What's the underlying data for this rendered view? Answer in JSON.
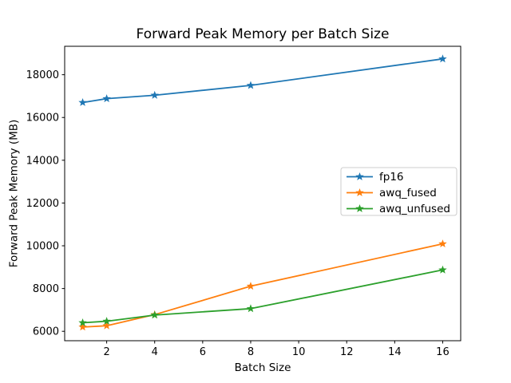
{
  "figure": {
    "background": "#ffffff",
    "text_color": "#000000",
    "spine_color": "#000000",
    "legend_border_color": "#cccccc"
  },
  "chart_data": {
    "type": "line",
    "title": "Forward Peak Memory per Batch Size",
    "xlabel": "Batch Size",
    "ylabel": "Forward Peak Memory (MB)",
    "x": [
      1,
      2,
      4,
      8,
      16
    ],
    "series": [
      {
        "name": "fp16",
        "color": "#1f77b4",
        "values": [
          16700,
          16880,
          17040,
          17500,
          18740
        ]
      },
      {
        "name": "awq_fused",
        "color": "#ff7f0e",
        "values": [
          6200,
          6260,
          6780,
          8110,
          10090
        ]
      },
      {
        "name": "awq_unfused",
        "color": "#2ca02c",
        "values": [
          6400,
          6470,
          6760,
          7060,
          8870
        ]
      }
    ],
    "marker": "star",
    "xlim": [
      0.25,
      16.75
    ],
    "ylim": [
      5560,
      19330
    ],
    "xticks": [
      2,
      4,
      6,
      8,
      10,
      12,
      14,
      16
    ],
    "yticks": [
      6000,
      8000,
      10000,
      12000,
      14000,
      16000,
      18000
    ],
    "grid": false,
    "legend_position": "center right",
    "legend_labels": [
      "fp16",
      "awq_fused",
      "awq_unfused"
    ]
  }
}
